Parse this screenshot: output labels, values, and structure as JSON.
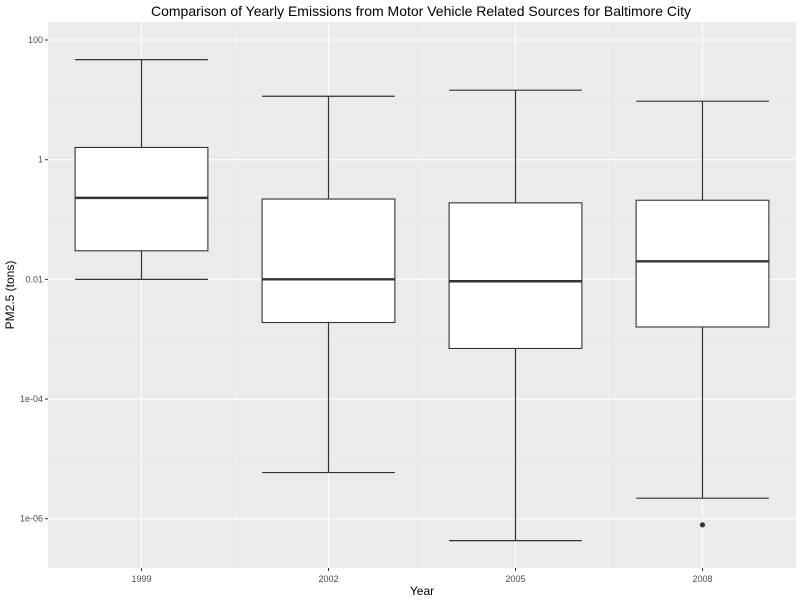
{
  "chart_data": {
    "type": "box",
    "title": "Comparison of Yearly Emissions from Motor Vehicle Related Sources for Baltimore City",
    "xlabel": "Year",
    "ylabel": "PM2.5 (tons)",
    "y_scale": "log10",
    "ylim": [
      1.5e-07,
      200
    ],
    "y_ticks": [
      {
        "value": 100,
        "label": "100"
      },
      {
        "value": 1,
        "label": "1"
      },
      {
        "value": 0.01,
        "label": "0.01"
      },
      {
        "value": 0.0001,
        "label": "1e-04"
      },
      {
        "value": 1e-06,
        "label": "1e-06"
      }
    ],
    "grid": true,
    "legend": "none",
    "categories": [
      "1999",
      "2002",
      "2005",
      "2008"
    ],
    "boxes": [
      {
        "category": "1999",
        "whisker_low": 0.01,
        "q1": 0.03,
        "median": 0.23,
        "q3": 1.6,
        "whisker_high": 47,
        "outliers": []
      },
      {
        "category": "2002",
        "whisker_low": 5.9e-06,
        "q1": 0.0019,
        "median": 0.01,
        "q3": 0.22,
        "whisker_high": 11.5,
        "outliers": []
      },
      {
        "category": "2005",
        "whisker_low": 4.3e-07,
        "q1": 0.0007,
        "median": 0.0093,
        "q3": 0.19,
        "whisker_high": 14.5,
        "outliers": []
      },
      {
        "category": "2008",
        "whisker_low": 2.2e-06,
        "q1": 0.0016,
        "median": 0.02,
        "q3": 0.21,
        "whisker_high": 9.5,
        "outliers": [
          7.9e-07
        ]
      }
    ]
  }
}
